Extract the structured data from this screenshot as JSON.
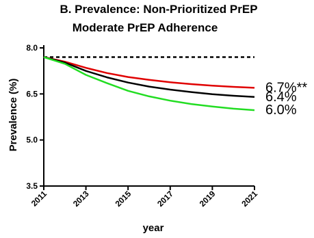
{
  "chart_data": {
    "type": "line",
    "title": "B. Prevalence: Non-Prioritized PrEP",
    "subtitle": "Moderate PrEP Adherence",
    "xlabel": "year",
    "ylabel": "Prevalence (%)",
    "xlim": [
      2011,
      2021
    ],
    "ylim": [
      3.5,
      8.0
    ],
    "x_ticks": [
      "2011",
      "2013",
      "2015",
      "2017",
      "2019",
      "2021"
    ],
    "y_ticks": [
      "3.5",
      "5.0",
      "6.5",
      "8.0"
    ],
    "grid": false,
    "legend": "none",
    "series": [
      {
        "color": "#000000",
        "style": "dashed",
        "x": [
          2011,
          2013,
          2015,
          2017,
          2019,
          2021
        ],
        "y": [
          7.7,
          7.7,
          7.7,
          7.7,
          7.7,
          7.7
        ]
      },
      {
        "color": "#e00000",
        "style": "solid",
        "x": [
          2011,
          2012,
          2013,
          2014,
          2015,
          2016,
          2017,
          2018,
          2019,
          2020,
          2021
        ],
        "y": [
          7.7,
          7.55,
          7.35,
          7.18,
          7.05,
          6.96,
          6.88,
          6.82,
          6.77,
          6.73,
          6.7
        ]
      },
      {
        "color": "#000000",
        "style": "solid",
        "x": [
          2011,
          2012,
          2013,
          2014,
          2015,
          2016,
          2017,
          2018,
          2019,
          2020,
          2021
        ],
        "y": [
          7.7,
          7.52,
          7.25,
          7.04,
          6.87,
          6.74,
          6.64,
          6.56,
          6.49,
          6.44,
          6.4
        ]
      },
      {
        "color": "#22dd22",
        "style": "solid",
        "x": [
          2011,
          2012,
          2013,
          2014,
          2015,
          2016,
          2017,
          2018,
          2019,
          2020,
          2021
        ],
        "y": [
          7.7,
          7.48,
          7.12,
          6.85,
          6.6,
          6.42,
          6.28,
          6.17,
          6.09,
          6.02,
          5.97
        ]
      }
    ],
    "annotations": [
      {
        "text": "6.7%**",
        "series_index": 1
      },
      {
        "text": "6.4%",
        "series_index": 2
      },
      {
        "text": "6.0%",
        "series_index": 3
      }
    ]
  }
}
